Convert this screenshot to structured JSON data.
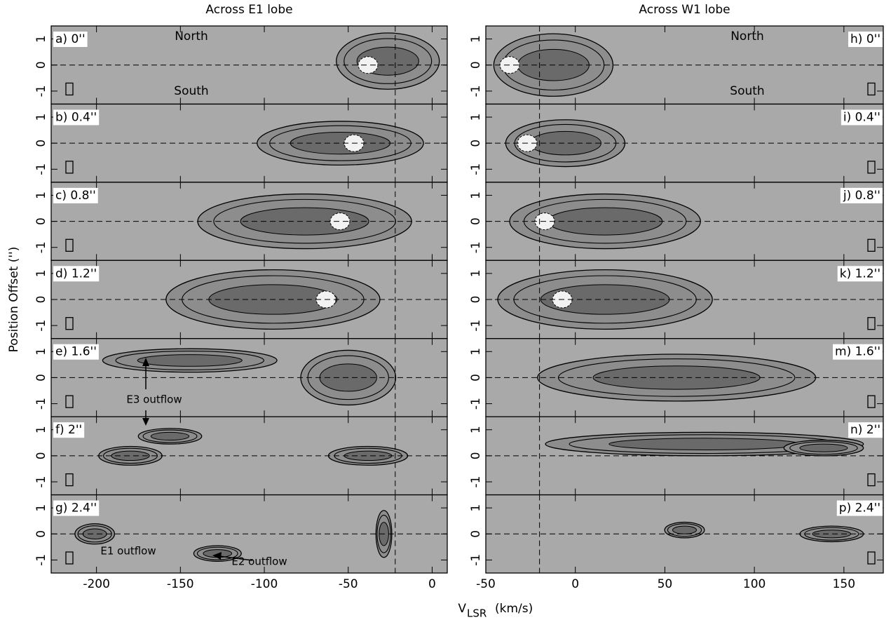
{
  "xlabel": {
    "main": "V",
    "sub": "LSR",
    "unit": "(km/s)"
  },
  "ylabel": "Position Offset ('')",
  "chart_data": [
    {
      "type": "pv-diagram",
      "title": "Across E1 lobe",
      "xlim": [
        -227,
        9
      ],
      "xticks": [
        -200,
        -150,
        -100,
        -50,
        0
      ],
      "ylim": [
        -1.5,
        1.5
      ],
      "yticks": [
        -1,
        0,
        1
      ],
      "hline": 0,
      "vline": -22,
      "panel_labels": [
        "a) 0''",
        "b) 0.4''",
        "c) 0.8''",
        "d) 1.2''",
        "e) 1.6''",
        "f) 2''",
        "g) 2.4''"
      ],
      "annotations": [
        "North",
        "South",
        "E3 outflow",
        "E1 outflow",
        "E2 outflow"
      ]
    },
    {
      "type": "pv-diagram",
      "title": "Across W1 lobe",
      "xlim": [
        -50,
        172
      ],
      "xticks": [
        -50,
        0,
        50,
        100,
        150
      ],
      "ylim": [
        -1.5,
        1.5
      ],
      "yticks": [
        -1,
        0,
        1
      ],
      "hline": 0,
      "vline": -20,
      "panel_labels": [
        "h) 0''",
        "i) 0.4''",
        "j) 0.8''",
        "k) 1.2''",
        "m) 1.6''",
        "n) 2''",
        "p) 2.4''"
      ],
      "annotations": [
        "North",
        "South"
      ]
    }
  ]
}
